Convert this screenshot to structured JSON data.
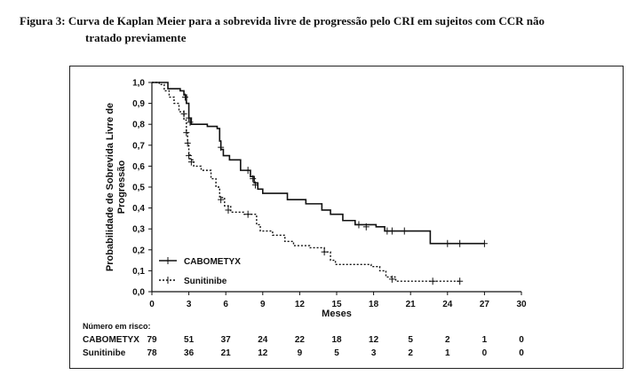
{
  "caption": {
    "line1": "Figura 3: Curva de Kaplan Meier para a sobrevida livre de progressão pelo CRI em sujeitos com CCR não",
    "line2": "tratado previamente"
  },
  "chart_data": {
    "type": "line",
    "ylabel_line1": "Probabilidade de Sobrevida Livre de",
    "ylabel_line2": "Progressão",
    "xlabel": "Meses",
    "xlim": [
      0,
      30
    ],
    "ylim": [
      0,
      1
    ],
    "x_ticks": [
      "0",
      "3",
      "6",
      "9",
      "12",
      "15",
      "18",
      "21",
      "24",
      "27",
      "30"
    ],
    "y_ticks": [
      "0,0",
      "0,1",
      "0,2",
      "0,3",
      "0,4",
      "0,5",
      "0,6",
      "0,7",
      "0,8",
      "0,9",
      "1,0"
    ],
    "series": [
      {
        "name": "CABOMETYX",
        "style": "solid",
        "points": [
          [
            0,
            1.0
          ],
          [
            0.8,
            1.0
          ],
          [
            1.3,
            0.97
          ],
          [
            2.3,
            0.96
          ],
          [
            2.6,
            0.94
          ],
          [
            2.8,
            0.9
          ],
          [
            3.0,
            0.83
          ],
          [
            3.2,
            0.8
          ],
          [
            4.5,
            0.79
          ],
          [
            5.3,
            0.78
          ],
          [
            5.5,
            0.72
          ],
          [
            5.6,
            0.68
          ],
          [
            5.8,
            0.65
          ],
          [
            6.3,
            0.63
          ],
          [
            7.2,
            0.58
          ],
          [
            7.6,
            0.58
          ],
          [
            8.0,
            0.55
          ],
          [
            8.3,
            0.52
          ],
          [
            8.6,
            0.49
          ],
          [
            9.0,
            0.47
          ],
          [
            11.0,
            0.44
          ],
          [
            12.5,
            0.42
          ],
          [
            13.8,
            0.39
          ],
          [
            14.5,
            0.37
          ],
          [
            15.5,
            0.34
          ],
          [
            16.5,
            0.32
          ],
          [
            18.2,
            0.31
          ],
          [
            18.9,
            0.29
          ],
          [
            22.5,
            0.29
          ],
          [
            22.6,
            0.23
          ],
          [
            27.0,
            0.23
          ]
        ],
        "censored": [
          [
            2.7,
            0.93
          ],
          [
            3.0,
            0.83
          ],
          [
            3.1,
            0.81
          ],
          [
            5.6,
            0.69
          ],
          [
            7.8,
            0.58
          ],
          [
            8.2,
            0.54
          ],
          [
            8.4,
            0.51
          ],
          [
            16.8,
            0.32
          ],
          [
            17.4,
            0.31
          ],
          [
            19.1,
            0.29
          ],
          [
            19.5,
            0.29
          ],
          [
            20.5,
            0.29
          ],
          [
            24.0,
            0.23
          ],
          [
            25.0,
            0.23
          ],
          [
            27.0,
            0.23
          ]
        ]
      },
      {
        "name": "Sunitinibe",
        "style": "dotted",
        "points": [
          [
            0,
            1.0
          ],
          [
            0.6,
            0.99
          ],
          [
            1.0,
            0.96
          ],
          [
            1.4,
            0.93
          ],
          [
            1.8,
            0.9
          ],
          [
            2.2,
            0.86
          ],
          [
            2.6,
            0.82
          ],
          [
            2.8,
            0.76
          ],
          [
            2.9,
            0.71
          ],
          [
            3.0,
            0.66
          ],
          [
            3.1,
            0.63
          ],
          [
            3.4,
            0.6
          ],
          [
            4.0,
            0.58
          ],
          [
            4.8,
            0.54
          ],
          [
            5.2,
            0.5
          ],
          [
            5.5,
            0.45
          ],
          [
            5.9,
            0.41
          ],
          [
            6.4,
            0.38
          ],
          [
            7.5,
            0.37
          ],
          [
            8.5,
            0.32
          ],
          [
            8.8,
            0.29
          ],
          [
            9.8,
            0.27
          ],
          [
            10.8,
            0.24
          ],
          [
            11.5,
            0.22
          ],
          [
            12.8,
            0.21
          ],
          [
            14.0,
            0.19
          ],
          [
            14.5,
            0.15
          ],
          [
            14.9,
            0.13
          ],
          [
            17.8,
            0.12
          ],
          [
            18.5,
            0.1
          ],
          [
            19.0,
            0.07
          ],
          [
            19.8,
            0.05
          ],
          [
            25.0,
            0.05
          ]
        ],
        "censored": [
          [
            2.6,
            0.85
          ],
          [
            2.8,
            0.76
          ],
          [
            2.9,
            0.71
          ],
          [
            3.0,
            0.65
          ],
          [
            3.2,
            0.62
          ],
          [
            5.6,
            0.44
          ],
          [
            6.2,
            0.39
          ],
          [
            7.8,
            0.37
          ],
          [
            14.0,
            0.19
          ],
          [
            19.5,
            0.06
          ],
          [
            22.8,
            0.05
          ],
          [
            25.0,
            0.05
          ]
        ]
      }
    ],
    "legend": {
      "placement": "bottom-left",
      "entries": [
        "CABOMETYX",
        "Sunitinibe"
      ]
    },
    "risk_table": {
      "title": "Número em risco:",
      "rows": [
        {
          "label": "CABOMETYX",
          "values": [
            "79",
            "51",
            "37",
            "24",
            "22",
            "18",
            "12",
            "5",
            "2",
            "1",
            "0"
          ]
        },
        {
          "label": "Sunitinibe",
          "values": [
            "78",
            "36",
            "21",
            "12",
            "9",
            "5",
            "3",
            "2",
            "1",
            "0",
            "0"
          ]
        }
      ]
    }
  }
}
